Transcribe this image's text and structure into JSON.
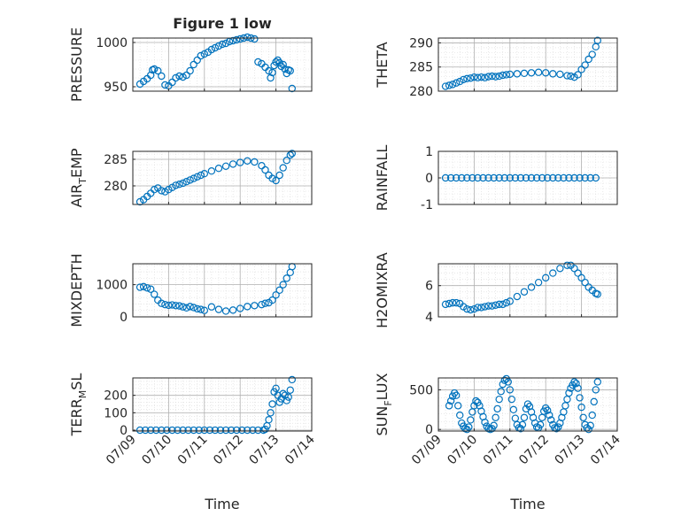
{
  "figure": {
    "title": "Figure 1 low",
    "xlabel": "Time",
    "x_ticks": [
      "07/09",
      "07/10",
      "07/11",
      "07/12",
      "07/13",
      "07/14"
    ]
  },
  "colors": {
    "marker": "#0072BD",
    "axis": "#262626",
    "grid": "#b0b0b0",
    "minor_grid": "#d9d9d9"
  },
  "chart_data": [
    {
      "type": "scatter",
      "name": "PRESSURE",
      "ylabel": "PRESSURE",
      "ylim": [
        945,
        1005
      ],
      "yticks": [
        950,
        1000
      ],
      "xlim": [
        0,
        5
      ],
      "x": [
        0.2,
        0.3,
        0.4,
        0.5,
        0.55,
        0.6,
        0.7,
        0.8,
        0.9,
        1.0,
        1.1,
        1.2,
        1.3,
        1.4,
        1.5,
        1.6,
        1.7,
        1.8,
        1.9,
        2.0,
        2.1,
        2.2,
        2.3,
        2.4,
        2.5,
        2.6,
        2.7,
        2.8,
        2.9,
        3.0,
        3.1,
        3.2,
        3.3,
        3.4,
        3.5,
        3.6,
        3.7,
        3.8,
        3.85,
        3.9,
        3.95,
        4.0,
        4.05,
        4.1,
        4.15,
        4.2,
        4.25,
        4.3,
        4.35,
        4.4,
        4.45
      ],
      "y": [
        953,
        956,
        959,
        963,
        969,
        970,
        968,
        962,
        952,
        951,
        955,
        960,
        962,
        961,
        963,
        968,
        975,
        980,
        985,
        987,
        989,
        992,
        994,
        996,
        998,
        999,
        1001,
        1002,
        1003,
        1004,
        1005,
        1006,
        1005,
        1004,
        978,
        976,
        972,
        968,
        960,
        966,
        974,
        978,
        980,
        977,
        973,
        975,
        970,
        965,
        969,
        968,
        948
      ]
    },
    {
      "type": "scatter",
      "name": "THETA",
      "ylabel": "THETA",
      "ylim": [
        280,
        291
      ],
      "yticks": [
        280,
        285,
        290
      ],
      "xlim": [
        0,
        5
      ],
      "x": [
        0.2,
        0.3,
        0.4,
        0.5,
        0.6,
        0.7,
        0.8,
        0.9,
        1.0,
        1.1,
        1.2,
        1.3,
        1.4,
        1.5,
        1.6,
        1.7,
        1.8,
        1.9,
        2.0,
        2.2,
        2.4,
        2.6,
        2.8,
        3.0,
        3.2,
        3.4,
        3.6,
        3.7,
        3.8,
        3.9,
        4.0,
        4.1,
        4.2,
        4.3,
        4.4,
        4.45
      ],
      "y": [
        281,
        281.2,
        281.4,
        281.7,
        282,
        282.4,
        282.6,
        282.7,
        282.9,
        282.8,
        282.9,
        282.8,
        283,
        283.1,
        283,
        283.1,
        283.3,
        283.4,
        283.5,
        283.6,
        283.7,
        283.8,
        283.9,
        283.8,
        283.6,
        283.5,
        283.2,
        283.1,
        282.9,
        283.4,
        284.5,
        285.4,
        286.6,
        287.6,
        289.2,
        290.5
      ]
    },
    {
      "type": "scatter",
      "name": "AIR_TEMP",
      "ylabel": "AIR",
      "ylabel_sub": "T",
      "ylabel_rest": "EMP",
      "ylim": [
        276.5,
        286.5
      ],
      "yticks": [
        280,
        285
      ],
      "xlim": [
        0,
        5
      ],
      "x": [
        0.2,
        0.3,
        0.4,
        0.5,
        0.6,
        0.7,
        0.8,
        0.9,
        1.0,
        1.1,
        1.2,
        1.3,
        1.4,
        1.5,
        1.6,
        1.7,
        1.8,
        1.9,
        2.0,
        2.2,
        2.4,
        2.6,
        2.8,
        3.0,
        3.2,
        3.4,
        3.6,
        3.7,
        3.8,
        3.9,
        4.0,
        4.1,
        4.2,
        4.3,
        4.4,
        4.45
      ],
      "y": [
        277,
        277.4,
        278,
        278.6,
        279.3,
        279.6,
        279.1,
        278.9,
        279.3,
        279.7,
        280.1,
        280.3,
        280.5,
        280.8,
        281.1,
        281.4,
        281.7,
        282,
        282.3,
        282.8,
        283.3,
        283.7,
        284.1,
        284.4,
        284.7,
        284.5,
        283.8,
        283,
        282,
        281.4,
        281,
        282,
        283.4,
        284.8,
        285.8,
        286.1
      ]
    },
    {
      "type": "scatter",
      "name": "RAINFALL",
      "ylabel": "RAINFALL",
      "ylim": [
        -1,
        1
      ],
      "yticks": [
        -1,
        0,
        1
      ],
      "xlim": [
        0,
        5
      ],
      "x": [
        0.2,
        0.35,
        0.5,
        0.65,
        0.8,
        0.95,
        1.1,
        1.25,
        1.4,
        1.55,
        1.7,
        1.85,
        2.0,
        2.15,
        2.3,
        2.45,
        2.6,
        2.75,
        2.9,
        3.05,
        3.2,
        3.35,
        3.5,
        3.65,
        3.8,
        3.95,
        4.1,
        4.25,
        4.4
      ],
      "y": [
        0,
        0,
        0,
        0,
        0,
        0,
        0,
        0,
        0,
        0,
        0,
        0,
        0,
        0,
        0,
        0,
        0,
        0,
        0,
        0,
        0,
        0,
        0,
        0,
        0,
        0,
        0,
        0,
        0
      ]
    },
    {
      "type": "scatter",
      "name": "MIXDEPTH",
      "ylabel": "MIXDEPTH",
      "ylim": [
        0,
        1650
      ],
      "yticks": [
        0,
        1000
      ],
      "xlim": [
        0,
        5
      ],
      "x": [
        0.2,
        0.3,
        0.4,
        0.5,
        0.6,
        0.7,
        0.8,
        0.9,
        1.0,
        1.1,
        1.2,
        1.3,
        1.4,
        1.5,
        1.6,
        1.7,
        1.8,
        1.9,
        2.0,
        2.2,
        2.4,
        2.6,
        2.8,
        3.0,
        3.2,
        3.4,
        3.6,
        3.7,
        3.8,
        3.9,
        4.0,
        4.1,
        4.2,
        4.3,
        4.4,
        4.45
      ],
      "y": [
        920,
        940,
        900,
        860,
        700,
        520,
        420,
        380,
        360,
        370,
        350,
        340,
        310,
        280,
        320,
        290,
        250,
        230,
        200,
        310,
        230,
        180,
        210,
        260,
        320,
        350,
        380,
        420,
        440,
        520,
        680,
        830,
        1000,
        1200,
        1380,
        1560
      ]
    },
    {
      "type": "scatter",
      "name": "H2OMIXRA",
      "ylabel": "H2OMIXRA",
      "ylim": [
        4,
        7.4
      ],
      "yticks": [
        4,
        6
      ],
      "xlim": [
        0,
        5
      ],
      "x": [
        0.2,
        0.3,
        0.4,
        0.5,
        0.6,
        0.7,
        0.8,
        0.9,
        1.0,
        1.1,
        1.2,
        1.3,
        1.4,
        1.5,
        1.6,
        1.7,
        1.8,
        1.9,
        2.0,
        2.2,
        2.4,
        2.6,
        2.8,
        3.0,
        3.2,
        3.4,
        3.6,
        3.7,
        3.8,
        3.9,
        4.0,
        4.1,
        4.2,
        4.3,
        4.4,
        4.45
      ],
      "y": [
        4.8,
        4.85,
        4.9,
        4.9,
        4.85,
        4.65,
        4.5,
        4.45,
        4.5,
        4.6,
        4.6,
        4.65,
        4.7,
        4.7,
        4.75,
        4.8,
        4.8,
        4.9,
        5,
        5.3,
        5.6,
        5.9,
        6.2,
        6.5,
        6.8,
        7.1,
        7.3,
        7.3,
        7.1,
        6.8,
        6.5,
        6.2,
        5.9,
        5.7,
        5.5,
        5.45
      ]
    },
    {
      "type": "scatter",
      "name": "TERR_MSL",
      "ylabel": "TERR",
      "ylabel_sub": "M",
      "ylabel_rest": "SL",
      "ylim": [
        -5,
        300
      ],
      "yticks": [
        0,
        100,
        200
      ],
      "xlim": [
        0,
        5
      ],
      "x": [
        0.2,
        0.35,
        0.5,
        0.65,
        0.8,
        0.95,
        1.1,
        1.25,
        1.4,
        1.55,
        1.7,
        1.85,
        2.0,
        2.15,
        2.3,
        2.45,
        2.6,
        2.75,
        2.9,
        3.05,
        3.2,
        3.35,
        3.5,
        3.65,
        3.7,
        3.75,
        3.8,
        3.85,
        3.9,
        3.95,
        4.0,
        4.05,
        4.1,
        4.15,
        4.2,
        4.25,
        4.3,
        4.35,
        4.4,
        4.45
      ],
      "y": [
        0,
        0,
        0,
        0,
        0,
        0,
        0,
        0,
        0,
        0,
        0,
        0,
        0,
        0,
        0,
        0,
        0,
        0,
        0,
        0,
        0,
        0,
        0,
        0,
        5,
        25,
        60,
        100,
        150,
        220,
        240,
        200,
        160,
        180,
        210,
        200,
        170,
        190,
        230,
        290
      ]
    },
    {
      "type": "scatter",
      "name": "SUN_FLUX",
      "ylabel": "SUN",
      "ylabel_sub": "F",
      "ylabel_rest": "LUX",
      "ylim": [
        -20,
        650
      ],
      "yticks": [
        0,
        500
      ],
      "xlim": [
        0,
        5
      ],
      "x": [
        0.3,
        0.35,
        0.4,
        0.45,
        0.5,
        0.55,
        0.6,
        0.65,
        0.7,
        0.75,
        0.8,
        0.85,
        0.9,
        0.95,
        1.0,
        1.05,
        1.1,
        1.15,
        1.2,
        1.25,
        1.3,
        1.35,
        1.4,
        1.45,
        1.5,
        1.55,
        1.6,
        1.65,
        1.7,
        1.75,
        1.8,
        1.85,
        1.9,
        1.95,
        2.0,
        2.05,
        2.1,
        2.15,
        2.2,
        2.25,
        2.3,
        2.35,
        2.4,
        2.45,
        2.5,
        2.55,
        2.6,
        2.65,
        2.7,
        2.75,
        2.8,
        2.85,
        2.9,
        2.95,
        3.0,
        3.05,
        3.1,
        3.15,
        3.2,
        3.25,
        3.3,
        3.35,
        3.4,
        3.45,
        3.5,
        3.55,
        3.6,
        3.65,
        3.7,
        3.75,
        3.8,
        3.85,
        3.9,
        3.95,
        4.0,
        4.05,
        4.1,
        4.15,
        4.2,
        4.25,
        4.3,
        4.35,
        4.4,
        4.45
      ],
      "y": [
        300,
        360,
        420,
        460,
        430,
        300,
        180,
        80,
        40,
        10,
        0,
        30,
        120,
        220,
        300,
        360,
        340,
        300,
        230,
        160,
        90,
        40,
        10,
        0,
        10,
        50,
        150,
        260,
        380,
        480,
        570,
        620,
        640,
        600,
        500,
        380,
        250,
        140,
        60,
        20,
        10,
        60,
        150,
        260,
        320,
        290,
        220,
        150,
        80,
        30,
        20,
        60,
        150,
        230,
        270,
        240,
        180,
        120,
        60,
        20,
        10,
        30,
        80,
        150,
        220,
        300,
        380,
        460,
        520,
        560,
        600,
        580,
        520,
        400,
        280,
        150,
        60,
        20,
        0,
        50,
        180,
        350,
        500,
        600
      ]
    }
  ]
}
